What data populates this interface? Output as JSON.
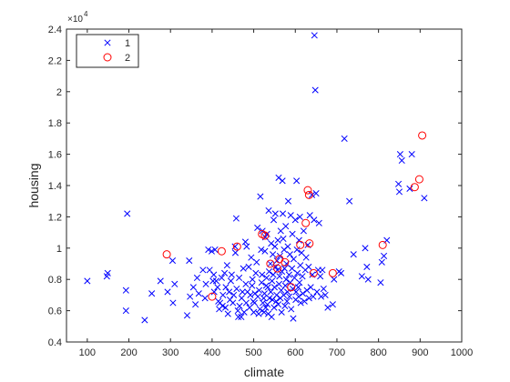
{
  "chart_data": {
    "type": "scatter",
    "title": "",
    "xlabel": "climate",
    "ylabel": "housing",
    "xlim": [
      50,
      1000
    ],
    "ylim": [
      4000,
      24000
    ],
    "x_ticks": [
      100,
      200,
      300,
      400,
      500,
      600,
      700,
      800,
      900,
      1000
    ],
    "y_ticks": [
      4000,
      6000,
      8000,
      10000,
      12000,
      14000,
      16000,
      18000,
      20000,
      22000,
      24000
    ],
    "y_tick_labels": [
      "0.4",
      "0.6",
      "0.8",
      "1",
      "1.2",
      "1.4",
      "1.6",
      "1.8",
      "2",
      "2.2",
      "2.4"
    ],
    "y_exponent": "10",
    "y_exponent_power": "4",
    "grid": false,
    "legend_position": "top-left",
    "series": [
      {
        "name": "1",
        "marker": "x",
        "color": "#0000ff",
        "points": [
          [
            100,
            7900
          ],
          [
            147,
            8200
          ],
          [
            149,
            8400
          ],
          [
            193,
            7300
          ],
          [
            193,
            6000
          ],
          [
            196,
            12200
          ],
          [
            238,
            5400
          ],
          [
            255,
            7100
          ],
          [
            276,
            7900
          ],
          [
            293,
            7200
          ],
          [
            305,
            9200
          ],
          [
            306,
            6500
          ],
          [
            310,
            7700
          ],
          [
            340,
            5700
          ],
          [
            345,
            9200
          ],
          [
            347,
            6900
          ],
          [
            355,
            7500
          ],
          [
            360,
            6400
          ],
          [
            364,
            8100
          ],
          [
            368,
            7100
          ],
          [
            378,
            8600
          ],
          [
            383,
            6800
          ],
          [
            385,
            7700
          ],
          [
            391,
            9900
          ],
          [
            394,
            8600
          ],
          [
            399,
            9800
          ],
          [
            402,
            7900
          ],
          [
            404,
            8300
          ],
          [
            405,
            7200
          ],
          [
            407,
            9900
          ],
          [
            410,
            7900
          ],
          [
            413,
            7500
          ],
          [
            415,
            6600
          ],
          [
            417,
            6100
          ],
          [
            419,
            6500
          ],
          [
            423,
            8100
          ],
          [
            425,
            6300
          ],
          [
            426,
            7000
          ],
          [
            430,
            8400
          ],
          [
            432,
            6200
          ],
          [
            433,
            7500
          ],
          [
            436,
            8900
          ],
          [
            438,
            5800
          ],
          [
            441,
            7200
          ],
          [
            443,
            6700
          ],
          [
            445,
            7900
          ],
          [
            447,
            8300
          ],
          [
            450,
            6500
          ],
          [
            452,
            7000
          ],
          [
            455,
            10100
          ],
          [
            456,
            9700
          ],
          [
            458,
            11900
          ],
          [
            459,
            7400
          ],
          [
            462,
            6000
          ],
          [
            463,
            5600
          ],
          [
            465,
            8100
          ],
          [
            466,
            6300
          ],
          [
            470,
            5600
          ],
          [
            471,
            6800
          ],
          [
            473,
            7200
          ],
          [
            475,
            8700
          ],
          [
            477,
            5900
          ],
          [
            480,
            10400
          ],
          [
            481,
            7700
          ],
          [
            482,
            6500
          ],
          [
            483,
            10100
          ],
          [
            485,
            7200
          ],
          [
            488,
            8800
          ],
          [
            490,
            6200
          ],
          [
            492,
            7000
          ],
          [
            494,
            9400
          ],
          [
            496,
            7600
          ],
          [
            497,
            8000
          ],
          [
            499,
            6600
          ],
          [
            500,
            5900
          ],
          [
            502,
            6500
          ],
          [
            503,
            7100
          ],
          [
            505,
            8400
          ],
          [
            507,
            9100
          ],
          [
            509,
            11300
          ],
          [
            510,
            6900
          ],
          [
            512,
            5800
          ],
          [
            513,
            7300
          ],
          [
            515,
            6100
          ],
          [
            516,
            13300
          ],
          [
            518,
            9900
          ],
          [
            519,
            7800
          ],
          [
            520,
            8300
          ],
          [
            521,
            11100
          ],
          [
            522,
            6500
          ],
          [
            524,
            6800
          ],
          [
            525,
            5900
          ],
          [
            526,
            7100
          ],
          [
            527,
            9800
          ],
          [
            528,
            10700
          ],
          [
            529,
            6200
          ],
          [
            530,
            7600
          ],
          [
            531,
            8100
          ],
          [
            532,
            10900
          ],
          [
            533,
            6400
          ],
          [
            534,
            7500
          ],
          [
            535,
            5800
          ],
          [
            536,
            12400
          ],
          [
            537,
            8500
          ],
          [
            538,
            6800
          ],
          [
            540,
            9000
          ],
          [
            541,
            7200
          ],
          [
            542,
            10300
          ],
          [
            543,
            5600
          ],
          [
            544,
            7900
          ],
          [
            545,
            6700
          ],
          [
            546,
            9600
          ],
          [
            547,
            8300
          ],
          [
            548,
            11800
          ],
          [
            549,
            6200
          ],
          [
            550,
            7500
          ],
          [
            551,
            10100
          ],
          [
            552,
            12200
          ],
          [
            553,
            8800
          ],
          [
            554,
            6600
          ],
          [
            555,
            7000
          ],
          [
            556,
            9200
          ],
          [
            557,
            8600
          ],
          [
            558,
            10500
          ],
          [
            559,
            6400
          ],
          [
            560,
            14500
          ],
          [
            561,
            7700
          ],
          [
            562,
            8200
          ],
          [
            563,
            9500
          ],
          [
            564,
            6800
          ],
          [
            565,
            11100
          ],
          [
            566,
            7300
          ],
          [
            567,
            5900
          ],
          [
            568,
            8500
          ],
          [
            569,
            14300
          ],
          [
            570,
            12200
          ],
          [
            571,
            10600
          ],
          [
            572,
            7000
          ],
          [
            573,
            9900
          ],
          [
            574,
            8700
          ],
          [
            575,
            6300
          ],
          [
            576,
            7600
          ],
          [
            577,
            11400
          ],
          [
            578,
            8000
          ],
          [
            579,
            9000
          ],
          [
            580,
            6600
          ],
          [
            581,
            7200
          ],
          [
            582,
            10100
          ],
          [
            583,
            13000
          ],
          [
            585,
            8300
          ],
          [
            586,
            6900
          ],
          [
            587,
            9600
          ],
          [
            588,
            7800
          ],
          [
            589,
            12100
          ],
          [
            590,
            6100
          ],
          [
            592,
            8700
          ],
          [
            593,
            10900
          ],
          [
            594,
            7400
          ],
          [
            595,
            5500
          ],
          [
            596,
            9300
          ],
          [
            598,
            8100
          ],
          [
            600,
            11800
          ],
          [
            601,
            6700
          ],
          [
            602,
            7200
          ],
          [
            603,
            14300
          ],
          [
            604,
            9900
          ],
          [
            605,
            8400
          ],
          [
            607,
            7500
          ],
          [
            608,
            6900
          ],
          [
            609,
            10500
          ],
          [
            610,
            7800
          ],
          [
            611,
            12000
          ],
          [
            612,
            8900
          ],
          [
            613,
            6500
          ],
          [
            615,
            9700
          ],
          [
            617,
            8200
          ],
          [
            618,
            7100
          ],
          [
            620,
            11100
          ],
          [
            622,
            6600
          ],
          [
            624,
            8600
          ],
          [
            626,
            9400
          ],
          [
            628,
            7300
          ],
          [
            630,
            10200
          ],
          [
            632,
            8800
          ],
          [
            633,
            6800
          ],
          [
            635,
            12100
          ],
          [
            637,
            7500
          ],
          [
            640,
            13400
          ],
          [
            641,
            8300
          ],
          [
            643,
            6900
          ],
          [
            645,
            11800
          ],
          [
            646,
            23600
          ],
          [
            648,
            20100
          ],
          [
            650,
            13500
          ],
          [
            652,
            7200
          ],
          [
            655,
            8600
          ],
          [
            657,
            11600
          ],
          [
            660,
            8200
          ],
          [
            662,
            6900
          ],
          [
            665,
            8600
          ],
          [
            668,
            7400
          ],
          [
            672,
            7000
          ],
          [
            678,
            6200
          ],
          [
            690,
            6400
          ],
          [
            693,
            8000
          ],
          [
            705,
            8500
          ],
          [
            710,
            8400
          ],
          [
            718,
            17000
          ],
          [
            730,
            13000
          ],
          [
            740,
            9600
          ],
          [
            760,
            8200
          ],
          [
            768,
            10000
          ],
          [
            772,
            8800
          ],
          [
            775,
            8000
          ],
          [
            805,
            7800
          ],
          [
            808,
            9100
          ],
          [
            813,
            9500
          ],
          [
            820,
            10500
          ],
          [
            848,
            14100
          ],
          [
            850,
            13600
          ],
          [
            852,
            16000
          ],
          [
            856,
            15600
          ],
          [
            875,
            13800
          ],
          [
            880,
            16000
          ],
          [
            910,
            13200
          ]
        ]
      },
      {
        "name": "2",
        "marker": "o",
        "color": "#ff0000",
        "points": [
          [
            291,
            9600
          ],
          [
            400,
            6900
          ],
          [
            423,
            9800
          ],
          [
            460,
            10100
          ],
          [
            520,
            10900
          ],
          [
            527,
            10800
          ],
          [
            540,
            9000
          ],
          [
            557,
            8700
          ],
          [
            562,
            9300
          ],
          [
            575,
            9100
          ],
          [
            590,
            7500
          ],
          [
            612,
            10200
          ],
          [
            625,
            11600
          ],
          [
            630,
            13700
          ],
          [
            633,
            13400
          ],
          [
            634,
            10300
          ],
          [
            644,
            8400
          ],
          [
            690,
            8400
          ],
          [
            810,
            10200
          ],
          [
            887,
            13900
          ],
          [
            898,
            14400
          ],
          [
            905,
            17200
          ]
        ]
      }
    ]
  }
}
